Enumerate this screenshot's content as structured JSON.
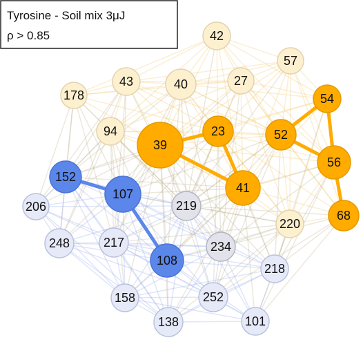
{
  "title": "Tyrosine - Soil mix 3μJ",
  "subtitle": "ρ > 0.85",
  "nodes": [
    {
      "label": "42"
    },
    {
      "label": "57"
    },
    {
      "label": "43"
    },
    {
      "label": "40"
    },
    {
      "label": "27"
    },
    {
      "label": "178"
    },
    {
      "label": "54"
    },
    {
      "label": "94"
    },
    {
      "label": "39"
    },
    {
      "label": "23"
    },
    {
      "label": "52"
    },
    {
      "label": "56"
    },
    {
      "label": "41"
    },
    {
      "label": "68"
    },
    {
      "label": "220"
    },
    {
      "label": "152"
    },
    {
      "label": "107"
    },
    {
      "label": "219"
    },
    {
      "label": "206"
    },
    {
      "label": "248"
    },
    {
      "label": "217"
    },
    {
      "label": "108"
    },
    {
      "label": "234"
    },
    {
      "label": "218"
    },
    {
      "label": "158"
    },
    {
      "label": "252"
    },
    {
      "label": "138"
    },
    {
      "label": "101"
    }
  ]
}
